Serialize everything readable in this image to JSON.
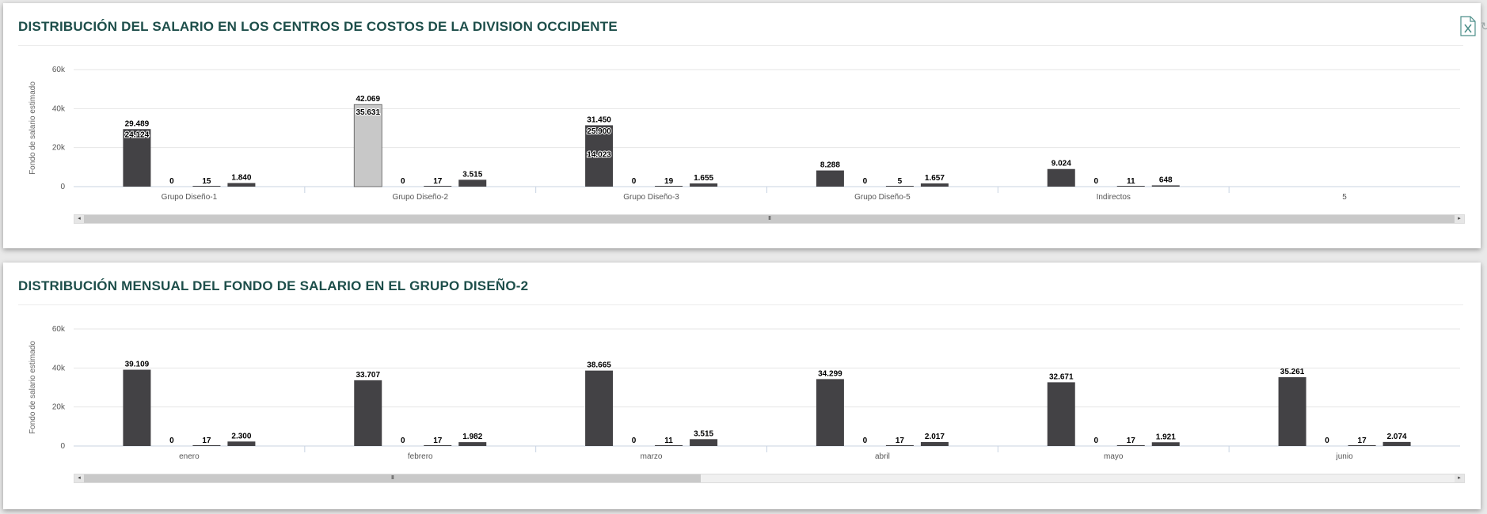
{
  "panels": [
    {
      "title": "DISTRIBUCIÓN DEL SALARIO EN LOS CENTROS DE COSTOS DE LA DIVISION OCCIDENTE",
      "toolbar": {
        "export_icon": "excel-file-icon",
        "refresh_icon": "refresh-icon"
      },
      "scrollbar": {
        "thumb_start": 0.0,
        "thumb_end": 1.0,
        "grip": "III"
      }
    },
    {
      "title": "DISTRIBUCIÓN MENSUAL DEL FONDO DE SALARIO EN EL GRUPO DISEÑO-2",
      "toolbar": {},
      "scrollbar": {
        "thumb_start": 0.0,
        "thumb_end": 0.45,
        "grip": "III"
      }
    }
  ],
  "chart_data": [
    {
      "type": "bar",
      "ylabel": "Fondo de salario estimado",
      "ylim": [
        0,
        60000
      ],
      "yticks": [
        0,
        20000,
        40000,
        60000
      ],
      "ytick_labels": [
        "0",
        "20k",
        "40k",
        "60k"
      ],
      "grid": true,
      "categories": [
        "Grupo Diseño-1",
        "Grupo Diseño-2",
        "Grupo Diseño-3",
        "Grupo Diseño-5",
        "Indirectos",
        "5"
      ],
      "series": [
        {
          "values": [
            29489,
            42069,
            31450,
            8288,
            9024,
            null
          ],
          "labels": [
            "29.489",
            "42.069",
            "31.450",
            "8.288",
            "9.024",
            ""
          ]
        },
        {
          "values": [
            0,
            0,
            0,
            0,
            0,
            null
          ],
          "labels": [
            "0",
            "0",
            "0",
            "0",
            "0",
            ""
          ]
        },
        {
          "values": [
            15,
            17,
            19,
            5,
            11,
            null
          ],
          "labels": [
            "15",
            "17",
            "19",
            "5",
            "11",
            ""
          ]
        },
        {
          "values": [
            1840,
            3515,
            1655,
            1657,
            648,
            null
          ],
          "labels": [
            "1.840",
            "3.515",
            "1.655",
            "1.657",
            "648",
            ""
          ]
        }
      ],
      "overlay_labels": [
        {
          "category": "Grupo Diseño-1",
          "value": 24124,
          "label": "24.124"
        },
        {
          "category": "Grupo Diseño-2",
          "value": 35631,
          "label": "35.631"
        },
        {
          "category": "Grupo Diseño-3",
          "value": 25900,
          "label": "25.900"
        },
        {
          "category": "Grupo Diseño-3",
          "value": 14023,
          "label": "14.023"
        }
      ],
      "highlighted": {
        "category": "Grupo Diseño-2",
        "series": 0,
        "color": "#c8c8c8"
      },
      "colors": {
        "bar": "#434245",
        "highlight": "#c8c8c8",
        "grid": "#e6e6e6",
        "axis": "#c8d3e2"
      }
    },
    {
      "type": "bar",
      "ylabel": "Fondo de salario estimado",
      "ylim": [
        0,
        60000
      ],
      "yticks": [
        0,
        20000,
        40000,
        60000
      ],
      "ytick_labels": [
        "0",
        "20k",
        "40k",
        "60k"
      ],
      "grid": true,
      "categories": [
        "enero",
        "febrero",
        "marzo",
        "abril",
        "mayo",
        "junio"
      ],
      "series": [
        {
          "values": [
            39109,
            33707,
            38665,
            34299,
            32671,
            35261
          ],
          "labels": [
            "39.109",
            "33.707",
            "38.665",
            "34.299",
            "32.671",
            "35.261"
          ]
        },
        {
          "values": [
            0,
            0,
            0,
            0,
            0,
            0
          ],
          "labels": [
            "0",
            "0",
            "0",
            "0",
            "0",
            "0"
          ]
        },
        {
          "values": [
            17,
            17,
            11,
            17,
            17,
            17
          ],
          "labels": [
            "17",
            "17",
            "11",
            "17",
            "17",
            "17"
          ]
        },
        {
          "values": [
            2300,
            1982,
            3515,
            2017,
            1921,
            2074
          ],
          "labels": [
            "2.300",
            "1.982",
            "3.515",
            "2.017",
            "1.921",
            "2.074"
          ]
        }
      ],
      "overlay_labels": [],
      "colors": {
        "bar": "#434245",
        "grid": "#e6e6e6",
        "axis": "#c8d3e2"
      }
    }
  ]
}
